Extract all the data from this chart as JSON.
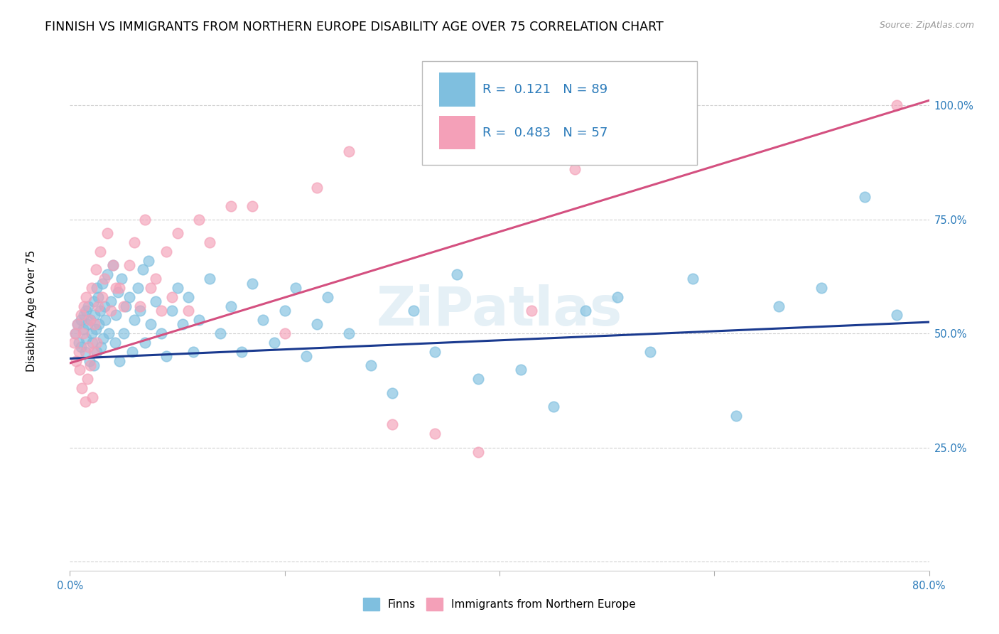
{
  "title": "FINNISH VS IMMIGRANTS FROM NORTHERN EUROPE DISABILITY AGE OVER 75 CORRELATION CHART",
  "source": "Source: ZipAtlas.com",
  "ylabel": "Disability Age Over 75",
  "r_blue": 0.121,
  "n_blue": 89,
  "r_pink": 0.483,
  "n_pink": 57,
  "blue_color": "#7fbfdf",
  "pink_color": "#f4a0b8",
  "blue_line_color": "#1a3a8f",
  "pink_line_color": "#d45080",
  "background_color": "#ffffff",
  "grid_color": "#cccccc",
  "title_fontsize": 12.5,
  "axis_label_fontsize": 11,
  "tick_fontsize": 10.5,
  "legend_fontsize": 13,
  "watermark": "ZiPatlas",
  "xlim": [
    0.0,
    0.8
  ],
  "ylim": [
    -0.02,
    1.12
  ],
  "blue_intercept": 0.445,
  "blue_slope": 0.1,
  "pink_intercept": 0.435,
  "pink_slope": 0.72,
  "finns_x": [
    0.005,
    0.007,
    0.008,
    0.01,
    0.01,
    0.012,
    0.013,
    0.014,
    0.015,
    0.015,
    0.016,
    0.017,
    0.018,
    0.019,
    0.02,
    0.021,
    0.022,
    0.022,
    0.023,
    0.024,
    0.025,
    0.025,
    0.026,
    0.027,
    0.028,
    0.029,
    0.03,
    0.031,
    0.032,
    0.033,
    0.035,
    0.036,
    0.038,
    0.04,
    0.042,
    0.043,
    0.045,
    0.046,
    0.048,
    0.05,
    0.052,
    0.055,
    0.058,
    0.06,
    0.063,
    0.065,
    0.068,
    0.07,
    0.073,
    0.075,
    0.08,
    0.085,
    0.09,
    0.095,
    0.1,
    0.105,
    0.11,
    0.115,
    0.12,
    0.13,
    0.14,
    0.15,
    0.16,
    0.17,
    0.18,
    0.19,
    0.2,
    0.21,
    0.22,
    0.23,
    0.24,
    0.26,
    0.28,
    0.3,
    0.32,
    0.34,
    0.36,
    0.38,
    0.42,
    0.45,
    0.48,
    0.51,
    0.54,
    0.58,
    0.62,
    0.66,
    0.7,
    0.74,
    0.77
  ],
  "finns_y": [
    0.5,
    0.52,
    0.48,
    0.53,
    0.47,
    0.51,
    0.54,
    0.46,
    0.55,
    0.49,
    0.52,
    0.56,
    0.44,
    0.53,
    0.5,
    0.48,
    0.57,
    0.43,
    0.54,
    0.51,
    0.6,
    0.46,
    0.58,
    0.52,
    0.55,
    0.47,
    0.61,
    0.49,
    0.56,
    0.53,
    0.63,
    0.5,
    0.57,
    0.65,
    0.48,
    0.54,
    0.59,
    0.44,
    0.62,
    0.5,
    0.56,
    0.58,
    0.46,
    0.53,
    0.6,
    0.55,
    0.64,
    0.48,
    0.66,
    0.52,
    0.57,
    0.5,
    0.45,
    0.55,
    0.6,
    0.52,
    0.58,
    0.46,
    0.53,
    0.62,
    0.5,
    0.56,
    0.46,
    0.61,
    0.53,
    0.48,
    0.55,
    0.6,
    0.45,
    0.52,
    0.58,
    0.5,
    0.43,
    0.37,
    0.55,
    0.46,
    0.63,
    0.4,
    0.42,
    0.34,
    0.55,
    0.58,
    0.46,
    0.62,
    0.32,
    0.56,
    0.6,
    0.8,
    0.54
  ],
  "immigrants_x": [
    0.004,
    0.005,
    0.006,
    0.007,
    0.008,
    0.009,
    0.01,
    0.011,
    0.012,
    0.013,
    0.014,
    0.015,
    0.016,
    0.017,
    0.018,
    0.019,
    0.02,
    0.021,
    0.022,
    0.023,
    0.024,
    0.025,
    0.026,
    0.028,
    0.03,
    0.032,
    0.035,
    0.038,
    0.04,
    0.043,
    0.046,
    0.05,
    0.055,
    0.06,
    0.065,
    0.07,
    0.075,
    0.08,
    0.085,
    0.09,
    0.095,
    0.1,
    0.11,
    0.12,
    0.13,
    0.15,
    0.17,
    0.2,
    0.23,
    0.26,
    0.3,
    0.34,
    0.38,
    0.43,
    0.47,
    0.53,
    0.77
  ],
  "immigrants_y": [
    0.48,
    0.5,
    0.44,
    0.52,
    0.46,
    0.42,
    0.54,
    0.38,
    0.5,
    0.56,
    0.35,
    0.58,
    0.4,
    0.47,
    0.53,
    0.43,
    0.6,
    0.36,
    0.46,
    0.52,
    0.64,
    0.48,
    0.56,
    0.68,
    0.58,
    0.62,
    0.72,
    0.55,
    0.65,
    0.6,
    0.6,
    0.56,
    0.65,
    0.7,
    0.56,
    0.75,
    0.6,
    0.62,
    0.55,
    0.68,
    0.58,
    0.72,
    0.55,
    0.75,
    0.7,
    0.78,
    0.78,
    0.5,
    0.82,
    0.9,
    0.3,
    0.28,
    0.24,
    0.55,
    0.86,
    0.9,
    1.0
  ]
}
